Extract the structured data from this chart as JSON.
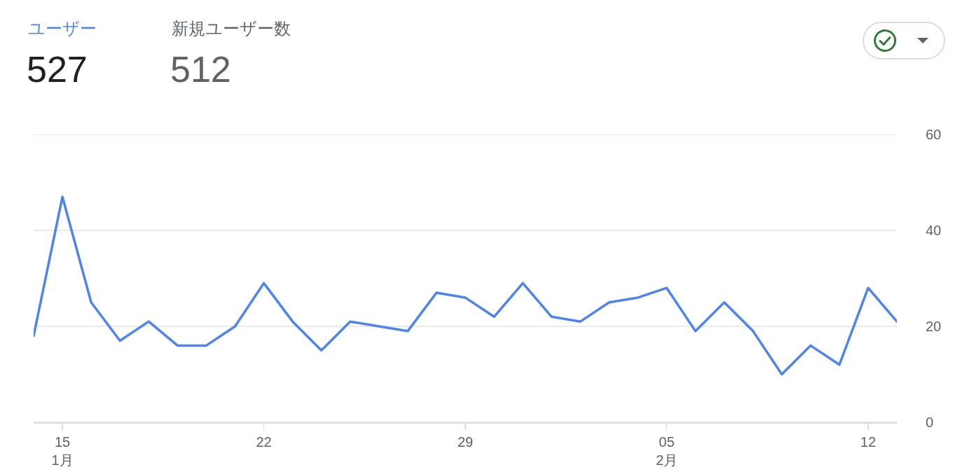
{
  "chart_data": {
    "type": "line",
    "x": [
      "--01-14",
      "--01-15",
      "--01-16",
      "--01-17",
      "--01-18",
      "--01-19",
      "--01-20",
      "--01-21",
      "--01-22",
      "--01-23",
      "--01-24",
      "--01-25",
      "--01-26",
      "--01-27",
      "--01-28",
      "--01-29",
      "--01-30",
      "--01-31",
      "--02-01",
      "--02-02",
      "--02-03",
      "--02-04",
      "--02-05",
      "--02-06",
      "--02-07",
      "--02-08",
      "--02-09",
      "--02-10",
      "--02-11",
      "--02-12",
      "--02-13"
    ],
    "series": [
      {
        "name": "ユーザー",
        "color": "#4d84ee",
        "values": [
          18,
          47,
          25,
          17,
          21,
          16,
          16,
          20,
          29,
          21,
          15,
          21,
          20,
          19,
          27,
          26,
          22,
          29,
          22,
          21,
          25,
          26,
          28,
          19,
          25,
          19,
          10,
          16,
          12,
          28,
          21
        ]
      }
    ],
    "annotations": [
      "527",
      "新規ユーザー数",
      "512"
    ],
    "xlim": [
      "--01-14",
      "--02-13"
    ],
    "xticks": [
      {
        "value": "--01-15",
        "label": "15\n1月"
      },
      {
        "value": "--01-22",
        "label": "22"
      },
      {
        "value": "--01-29",
        "label": "29"
      },
      {
        "value": "--02-05",
        "label": "05\n2月"
      },
      {
        "value": "--02-12",
        "label": "12"
      }
    ],
    "ylim": [
      0,
      60
    ],
    "yticks": [
      0,
      20,
      40,
      60
    ],
    "grid": "y",
    "legend": false,
    "marker": "none",
    "line_style": "solid"
  }
}
